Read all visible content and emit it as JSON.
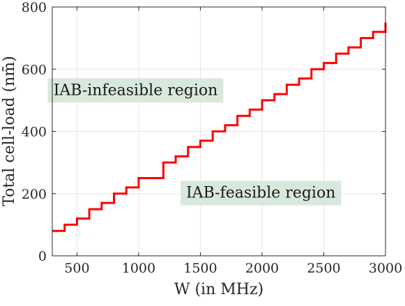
{
  "chart_data": {
    "type": "line",
    "step": true,
    "xlabel": "W (in MHz)",
    "ylabel": "Total cell-load (nm̄)",
    "xlim": [
      300,
      3000
    ],
    "ylim": [
      0,
      800
    ],
    "xticks": [
      500,
      1000,
      1500,
      2000,
      2500,
      3000
    ],
    "yticks": [
      0,
      200,
      400,
      600,
      800
    ],
    "grid": true,
    "line_color": "#ff0000",
    "annotation_color": "#d9e8dd",
    "annotations": [
      {
        "text": "IAB-infeasible region",
        "x": 975,
        "y": 535
      },
      {
        "text": "IAB-feasible region",
        "x": 1990,
        "y": 205
      }
    ],
    "series": [
      {
        "x": [
          300,
          400,
          500,
          600,
          700,
          800,
          900,
          1000,
          1100,
          1200,
          1300,
          1400,
          1500,
          1600,
          1700,
          1800,
          1900,
          2000,
          2100,
          2200,
          2300,
          2400,
          2500,
          2600,
          2700,
          2800,
          2900,
          3000
        ],
        "values": [
          80,
          100,
          120,
          150,
          170,
          200,
          220,
          250,
          250,
          300,
          320,
          350,
          370,
          400,
          420,
          450,
          470,
          500,
          520,
          550,
          570,
          600,
          620,
          650,
          670,
          700,
          720,
          750
        ]
      }
    ]
  }
}
